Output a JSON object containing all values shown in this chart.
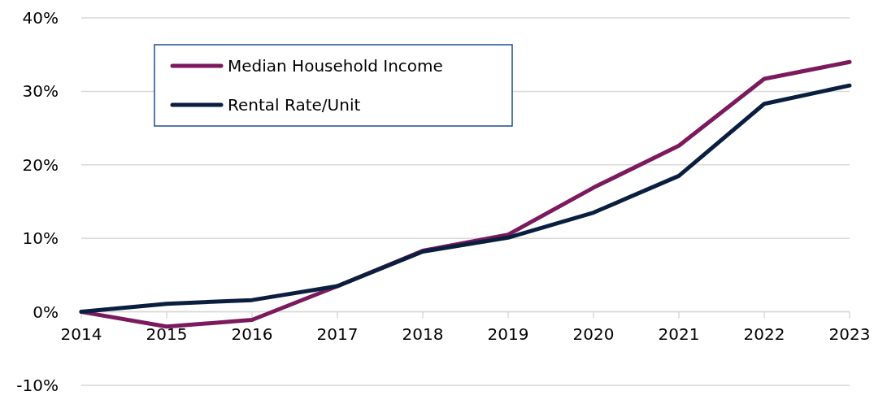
{
  "chart_data": {
    "type": "line",
    "categories": [
      "2014",
      "2015",
      "2016",
      "2017",
      "2018",
      "2019",
      "2020",
      "2021",
      "2022",
      "2023"
    ],
    "series": [
      {
        "name": "Median Household Income",
        "color": "#7b1a5e",
        "values": [
          0,
          -2.0,
          -1.1,
          3.5,
          8.3,
          10.5,
          16.9,
          22.6,
          31.7,
          34.0
        ]
      },
      {
        "name": "Rental Rate/Unit",
        "color": "#0a1f3f",
        "values": [
          0,
          1.1,
          1.6,
          3.5,
          8.2,
          10.1,
          13.5,
          18.5,
          28.3,
          30.8
        ]
      }
    ],
    "ylim": [
      -10,
      40
    ],
    "yticks": [
      {
        "value": -10,
        "label": "-10%"
      },
      {
        "value": 0,
        "label": "0%"
      },
      {
        "value": 10,
        "label": "10%"
      },
      {
        "value": 20,
        "label": "20%"
      },
      {
        "value": 30,
        "label": "30%"
      },
      {
        "value": 40,
        "label": "40%"
      }
    ],
    "grid": "y",
    "legend": "top left",
    "marker": "none",
    "line_style": "solid"
  }
}
